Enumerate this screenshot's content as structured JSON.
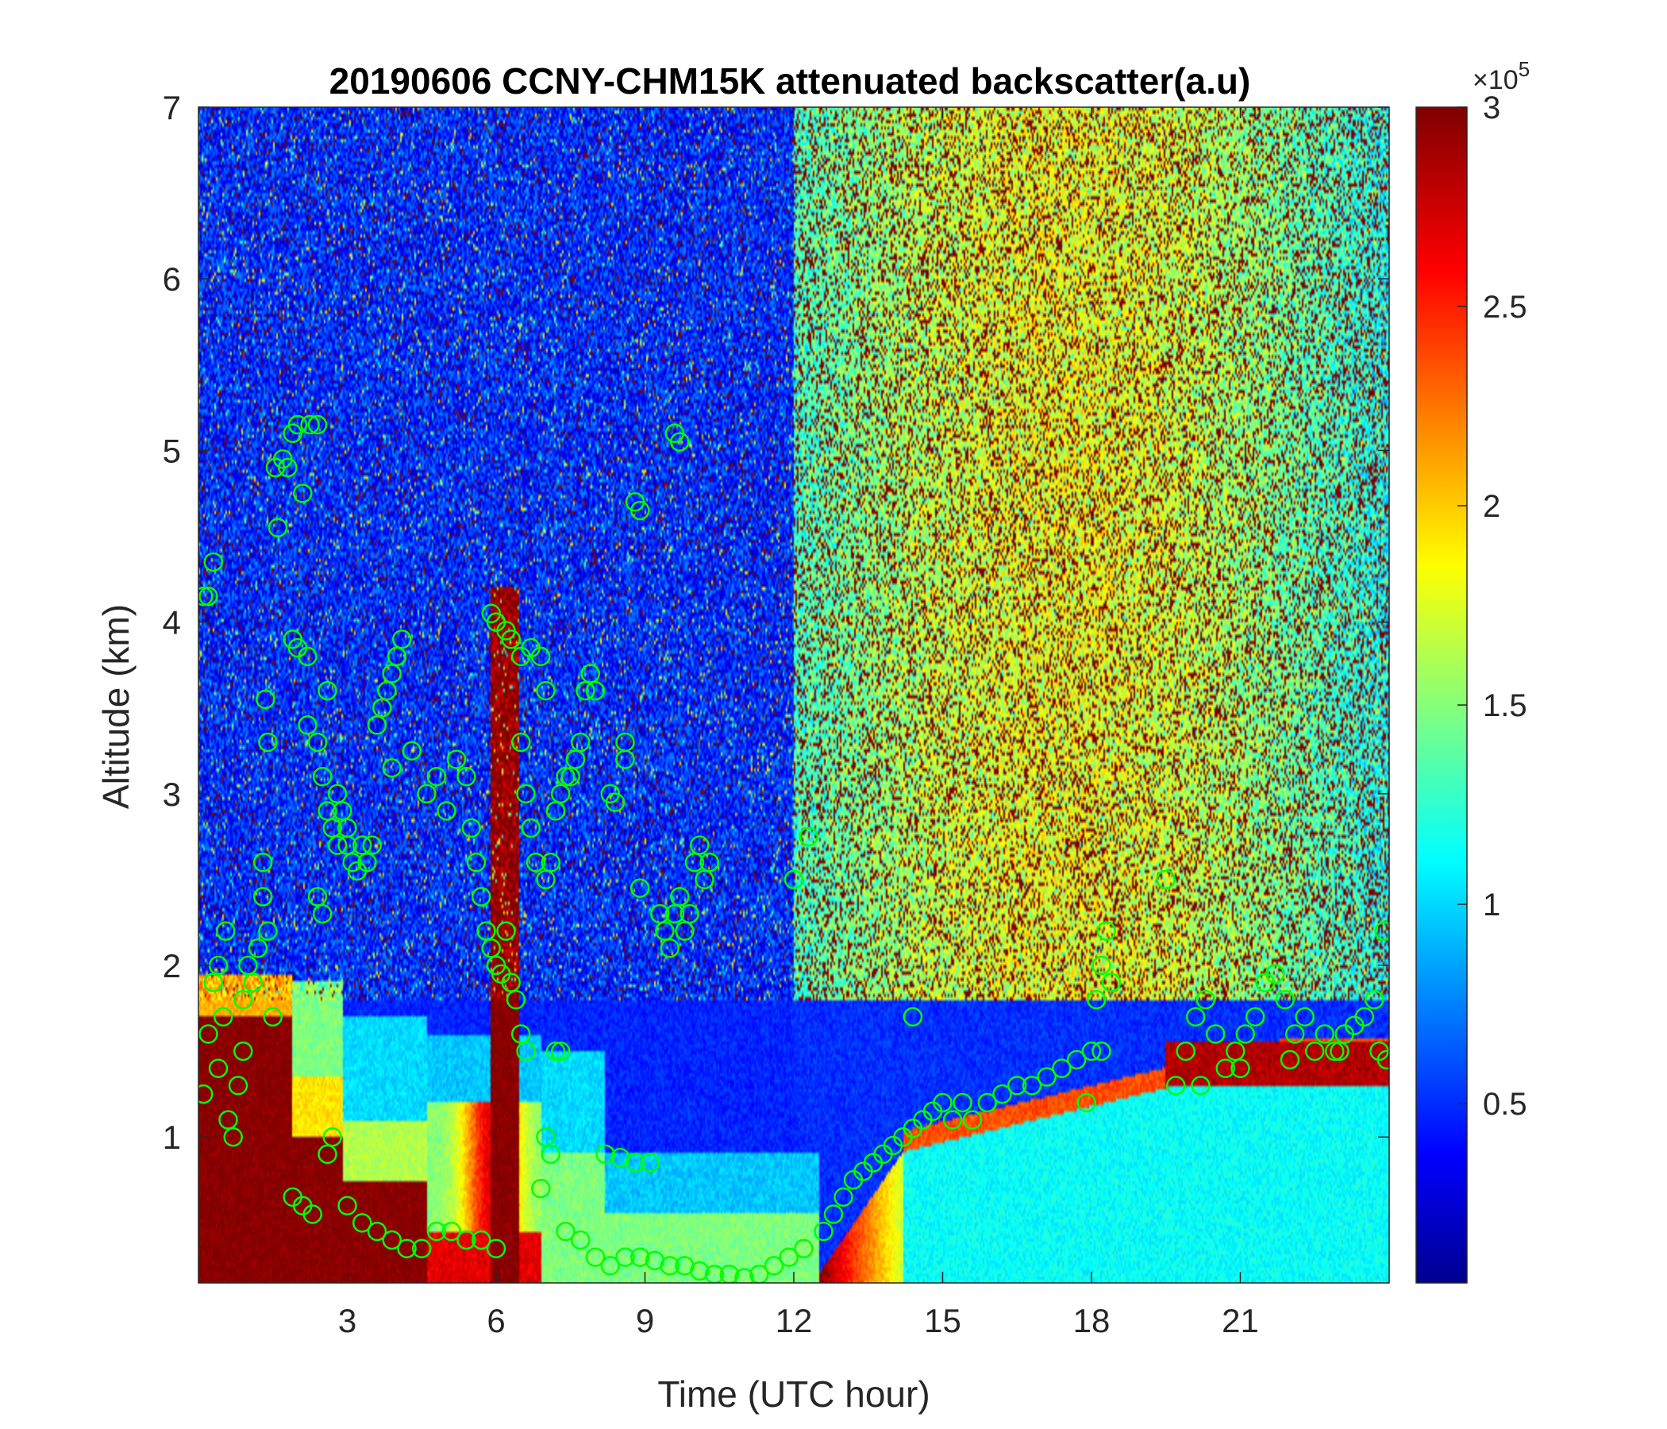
{
  "chart_data": {
    "type": "heatmap",
    "title": "20190606 CCNY-CHM15K attenuated backscatter(a.u)",
    "xlabel": "Time (UTC hour)",
    "ylabel": "Altitude (km)",
    "xlim": [
      0,
      24
    ],
    "ylim": [
      0.15,
      7
    ],
    "x_ticks": [
      3,
      6,
      9,
      12,
      15,
      18,
      21
    ],
    "y_ticks": [
      1,
      2,
      3,
      4,
      5,
      6,
      7
    ],
    "colormap": "jet",
    "colorbar": {
      "range": [
        0.05,
        3
      ],
      "ticks": [
        0.5,
        1,
        1.5,
        2,
        2.5,
        3
      ],
      "tick_labels": [
        "0.5",
        "1",
        "1.5",
        "2",
        "2.5",
        "3"
      ],
      "exponent_prefix": "×10",
      "exponent": "5"
    },
    "marker_color": "#00ff00",
    "marker_series": [
      {
        "segment": "early_low_cloud",
        "points": [
          [
            0.1,
            1.25
          ],
          [
            0.2,
            1.6
          ],
          [
            0.3,
            1.9
          ],
          [
            0.4,
            2.0
          ],
          [
            0.5,
            1.7
          ],
          [
            0.6,
            1.1
          ],
          [
            0.7,
            1.0
          ],
          [
            0.8,
            1.3
          ],
          [
            0.9,
            1.8
          ],
          [
            1.0,
            2.0
          ],
          [
            1.1,
            1.9
          ],
          [
            1.2,
            2.1
          ],
          [
            1.3,
            2.4
          ],
          [
            1.4,
            2.2
          ],
          [
            1.5,
            1.7
          ],
          [
            0.4,
            1.4
          ],
          [
            0.55,
            2.2
          ],
          [
            0.9,
            1.5
          ],
          [
            1.3,
            2.6
          ]
        ]
      },
      {
        "segment": "early_high_cloud",
        "points": [
          [
            0.1,
            4.15
          ],
          [
            0.2,
            4.15
          ],
          [
            0.3,
            4.35
          ],
          [
            1.35,
            3.55
          ],
          [
            1.4,
            3.3
          ],
          [
            1.6,
            4.55
          ],
          [
            1.55,
            4.9
          ],
          [
            1.7,
            4.95
          ],
          [
            1.8,
            4.9
          ],
          [
            1.9,
            5.1
          ],
          [
            2.0,
            5.15
          ],
          [
            2.1,
            4.75
          ],
          [
            2.25,
            5.15
          ],
          [
            2.4,
            5.15
          ],
          [
            1.9,
            3.9
          ],
          [
            2.0,
            3.85
          ],
          [
            2.2,
            3.8
          ]
        ]
      },
      {
        "segment": "mid_layer_2_4h",
        "points": [
          [
            2.2,
            3.4
          ],
          [
            2.4,
            3.3
          ],
          [
            2.5,
            3.1
          ],
          [
            2.6,
            2.9
          ],
          [
            2.7,
            2.8
          ],
          [
            2.8,
            2.7
          ],
          [
            2.9,
            2.9
          ],
          [
            3.0,
            2.7
          ],
          [
            3.1,
            2.6
          ],
          [
            3.2,
            2.55
          ],
          [
            3.3,
            2.7
          ],
          [
            3.4,
            2.6
          ],
          [
            3.5,
            2.7
          ],
          [
            2.4,
            2.4
          ],
          [
            2.5,
            2.3
          ],
          [
            2.6,
            3.6
          ],
          [
            2.8,
            3.0
          ],
          [
            3.0,
            2.8
          ],
          [
            3.7,
            3.5
          ],
          [
            3.8,
            3.6
          ],
          [
            3.9,
            3.7
          ],
          [
            4.0,
            3.8
          ],
          [
            4.1,
            3.9
          ],
          [
            3.6,
            3.4
          ],
          [
            3.9,
            3.15
          ],
          [
            4.3,
            3.25
          ]
        ]
      },
      {
        "segment": "mid_layer_4_7h",
        "points": [
          [
            4.6,
            3.0
          ],
          [
            4.8,
            3.1
          ],
          [
            5.0,
            2.9
          ],
          [
            5.2,
            3.2
          ],
          [
            5.4,
            3.1
          ],
          [
            5.5,
            2.8
          ],
          [
            5.6,
            2.6
          ],
          [
            5.7,
            2.4
          ],
          [
            5.8,
            2.2
          ],
          [
            5.9,
            2.1
          ],
          [
            6.0,
            2.0
          ],
          [
            6.1,
            1.95
          ],
          [
            6.2,
            2.2
          ],
          [
            6.3,
            1.9
          ],
          [
            6.4,
            1.8
          ],
          [
            6.5,
            1.6
          ],
          [
            6.6,
            1.5
          ],
          [
            5.9,
            4.05
          ],
          [
            6.0,
            4.0
          ],
          [
            6.2,
            3.95
          ],
          [
            6.3,
            3.9
          ],
          [
            6.5,
            3.8
          ],
          [
            6.7,
            3.85
          ],
          [
            6.9,
            3.8
          ],
          [
            7.0,
            3.6
          ],
          [
            6.5,
            3.3
          ],
          [
            6.6,
            3.0
          ],
          [
            6.7,
            2.8
          ],
          [
            6.8,
            2.6
          ],
          [
            7.0,
            2.5
          ],
          [
            7.1,
            2.6
          ],
          [
            7.2,
            2.9
          ],
          [
            7.3,
            3.0
          ],
          [
            7.4,
            3.1
          ],
          [
            7.5,
            3.1
          ],
          [
            7.6,
            3.2
          ],
          [
            7.7,
            3.3
          ],
          [
            7.8,
            3.6
          ],
          [
            7.9,
            3.7
          ],
          [
            8.0,
            3.6
          ],
          [
            8.3,
            3.0
          ],
          [
            8.4,
            2.95
          ],
          [
            8.6,
            3.2
          ],
          [
            8.6,
            3.3
          ],
          [
            7.2,
            1.5
          ],
          [
            7.3,
            1.5
          ],
          [
            7.0,
            1.0
          ],
          [
            7.1,
            0.9
          ],
          [
            6.9,
            0.7
          ]
        ]
      },
      {
        "segment": "mid_layer_9_10h",
        "points": [
          [
            8.8,
            4.7
          ],
          [
            8.9,
            4.65
          ],
          [
            9.6,
            5.1
          ],
          [
            9.7,
            5.05
          ],
          [
            8.9,
            2.45
          ],
          [
            9.3,
            2.3
          ],
          [
            9.4,
            2.2
          ],
          [
            9.5,
            2.1
          ],
          [
            9.6,
            2.3
          ],
          [
            9.7,
            2.4
          ],
          [
            9.8,
            2.2
          ],
          [
            9.9,
            2.3
          ],
          [
            10.0,
            2.6
          ],
          [
            10.1,
            2.7
          ],
          [
            10.2,
            2.5
          ],
          [
            10.3,
            2.6
          ],
          [
            12.0,
            2.5
          ],
          [
            12.3,
            2.75
          ],
          [
            14.4,
            1.7
          ],
          [
            19.5,
            2.5
          ]
        ]
      },
      {
        "segment": "surface_layer_2_13h",
        "points": [
          [
            1.9,
            0.65
          ],
          [
            2.1,
            0.6
          ],
          [
            2.3,
            0.55
          ],
          [
            2.6,
            0.9
          ],
          [
            2.7,
            1.0
          ],
          [
            3.0,
            0.6
          ],
          [
            3.3,
            0.5
          ],
          [
            3.6,
            0.45
          ],
          [
            3.9,
            0.4
          ],
          [
            4.2,
            0.35
          ],
          [
            4.5,
            0.35
          ],
          [
            4.8,
            0.45
          ],
          [
            5.1,
            0.45
          ],
          [
            5.4,
            0.4
          ],
          [
            5.7,
            0.4
          ],
          [
            6.0,
            0.35
          ],
          [
            7.4,
            0.45
          ],
          [
            7.7,
            0.4
          ],
          [
            8.0,
            0.3
          ],
          [
            8.3,
            0.25
          ],
          [
            8.6,
            0.3
          ],
          [
            8.9,
            0.3
          ],
          [
            9.2,
            0.28
          ],
          [
            9.5,
            0.25
          ],
          [
            9.8,
            0.25
          ],
          [
            10.1,
            0.22
          ],
          [
            10.4,
            0.2
          ],
          [
            10.7,
            0.2
          ],
          [
            11.0,
            0.18
          ],
          [
            11.3,
            0.2
          ],
          [
            11.6,
            0.25
          ],
          [
            11.9,
            0.3
          ],
          [
            12.2,
            0.35
          ],
          [
            12.6,
            0.45
          ],
          [
            8.2,
            0.9
          ],
          [
            8.5,
            0.88
          ],
          [
            8.8,
            0.85
          ],
          [
            9.1,
            0.85
          ]
        ]
      },
      {
        "segment": "rising_boundary_layer",
        "points": [
          [
            12.8,
            0.55
          ],
          [
            13.0,
            0.65
          ],
          [
            13.2,
            0.75
          ],
          [
            13.4,
            0.8
          ],
          [
            13.6,
            0.85
          ],
          [
            13.8,
            0.9
          ],
          [
            14.0,
            0.95
          ],
          [
            14.2,
            1.0
          ],
          [
            14.4,
            1.05
          ],
          [
            14.6,
            1.1
          ],
          [
            14.8,
            1.15
          ],
          [
            15.0,
            1.2
          ],
          [
            15.2,
            1.1
          ],
          [
            15.4,
            1.2
          ],
          [
            15.6,
            1.1
          ],
          [
            15.9,
            1.2
          ],
          [
            16.2,
            1.25
          ],
          [
            16.5,
            1.3
          ],
          [
            16.8,
            1.3
          ],
          [
            17.1,
            1.35
          ],
          [
            17.4,
            1.4
          ],
          [
            17.7,
            1.45
          ],
          [
            18.0,
            1.5
          ],
          [
            18.1,
            1.8
          ],
          [
            18.2,
            2.0
          ],
          [
            18.3,
            2.2
          ],
          [
            18.4,
            1.9
          ],
          [
            18.2,
            1.5
          ],
          [
            17.9,
            1.2
          ]
        ]
      },
      {
        "segment": "late_layer",
        "points": [
          [
            19.7,
            1.3
          ],
          [
            19.9,
            1.5
          ],
          [
            20.1,
            1.7
          ],
          [
            20.3,
            1.8
          ],
          [
            20.5,
            1.6
          ],
          [
            20.7,
            1.4
          ],
          [
            20.9,
            1.5
          ],
          [
            21.1,
            1.6
          ],
          [
            21.3,
            1.7
          ],
          [
            21.5,
            1.9
          ],
          [
            21.7,
            1.95
          ],
          [
            21.9,
            1.8
          ],
          [
            22.1,
            1.6
          ],
          [
            22.3,
            1.7
          ],
          [
            22.5,
            1.5
          ],
          [
            22.7,
            1.6
          ],
          [
            22.9,
            1.5
          ],
          [
            23.1,
            1.6
          ],
          [
            23.3,
            1.65
          ],
          [
            23.5,
            1.7
          ],
          [
            23.7,
            1.8
          ],
          [
            23.8,
            1.5
          ],
          [
            23.9,
            2.2
          ],
          [
            23.95,
            1.45
          ],
          [
            20.2,
            1.3
          ],
          [
            21.0,
            1.4
          ],
          [
            22.0,
            1.45
          ],
          [
            23.0,
            1.5
          ]
        ]
      }
    ]
  }
}
